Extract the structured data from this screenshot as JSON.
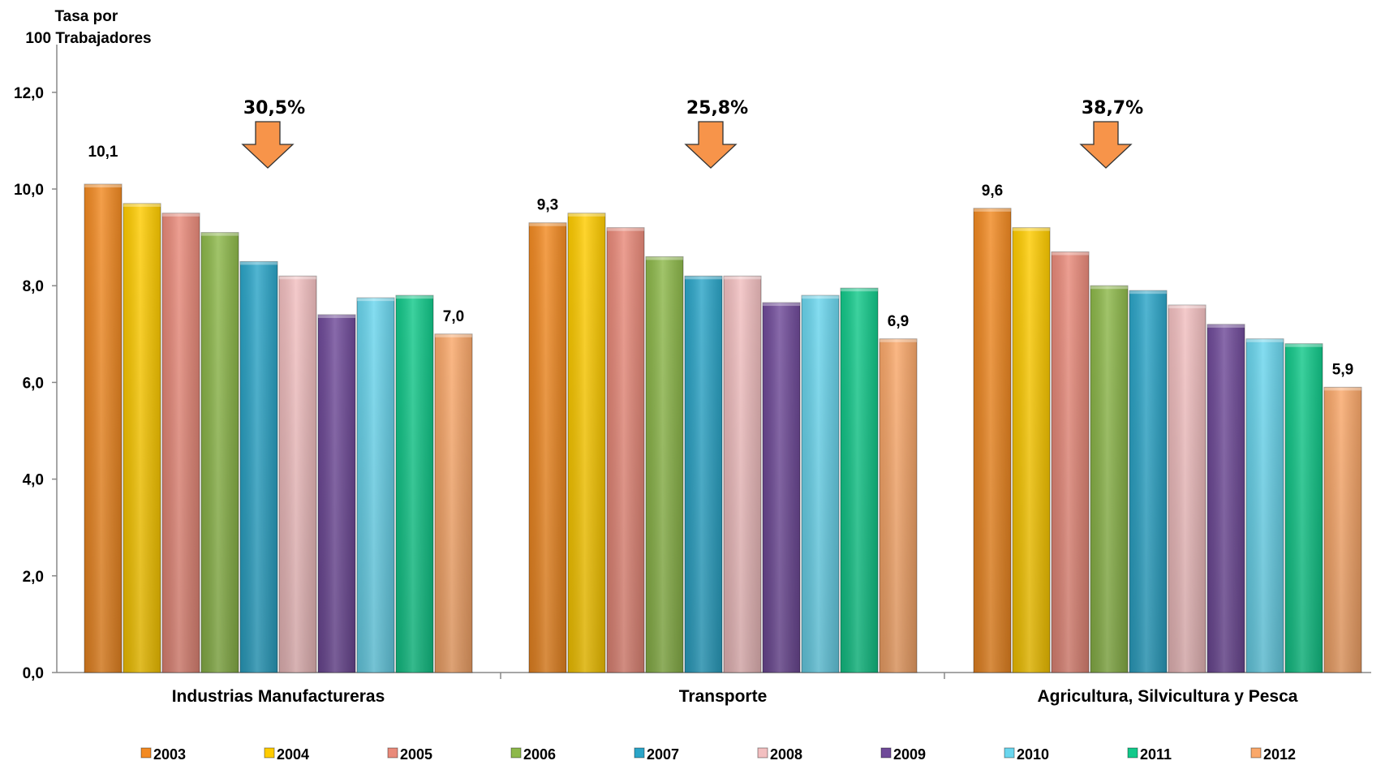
{
  "colors": {
    "2003": "#F28A22",
    "2004": "#FFCC00",
    "2005": "#E98A7A",
    "2006": "#8DB84A",
    "2007": "#2BA5C8",
    "2008": "#F2BFC0",
    "2009": "#6F4A99",
    "2010": "#6AD6EE",
    "2011": "#12C98A",
    "2012": "#FAA86A",
    "arrow": "#F7944A"
  },
  "chart_data": {
    "type": "bar",
    "ylabel": "Tasa por\n100 Trabajadores",
    "ylim": [
      0,
      13
    ],
    "yticks": [
      "0,0",
      "2,0",
      "4,0",
      "6,0",
      "8,0",
      "10,0",
      "12,0"
    ],
    "grid": false,
    "legend_position": "bottom",
    "categories": [
      "Industrias Manufactureras",
      "Transporte",
      "Agricultura, Silvicultura y Pesca"
    ],
    "series": [
      {
        "name": "2003",
        "values": [
          10.1,
          9.3,
          9.6
        ]
      },
      {
        "name": "2004",
        "values": [
          9.7,
          9.5,
          9.2
        ]
      },
      {
        "name": "2005",
        "values": [
          9.5,
          9.2,
          8.7
        ]
      },
      {
        "name": "2006",
        "values": [
          9.1,
          8.6,
          8.0
        ]
      },
      {
        "name": "2007",
        "values": [
          8.5,
          8.2,
          7.9
        ]
      },
      {
        "name": "2008",
        "values": [
          8.2,
          8.2,
          7.6
        ]
      },
      {
        "name": "2009",
        "values": [
          7.4,
          7.65,
          7.2
        ]
      },
      {
        "name": "2010",
        "values": [
          7.75,
          7.8,
          6.9
        ]
      },
      {
        "name": "2011",
        "values": [
          7.8,
          7.95,
          6.8
        ]
      },
      {
        "name": "2012",
        "values": [
          7.0,
          6.9,
          5.9
        ]
      }
    ],
    "data_labels": [
      {
        "category": 0,
        "series": 0,
        "text": "10,1"
      },
      {
        "category": 0,
        "series": 9,
        "text": "7,0"
      },
      {
        "category": 1,
        "series": 0,
        "text": "9,3"
      },
      {
        "category": 1,
        "series": 9,
        "text": "6,9"
      },
      {
        "category": 2,
        "series": 0,
        "text": "9,6"
      },
      {
        "category": 2,
        "series": 9,
        "text": "5,9"
      }
    ],
    "annotations": [
      {
        "category": 0,
        "text": "30,5%",
        "shape": "down-arrow"
      },
      {
        "category": 1,
        "text": "25,8%",
        "shape": "down-arrow"
      },
      {
        "category": 2,
        "text": "38,7%",
        "shape": "down-arrow"
      }
    ]
  }
}
